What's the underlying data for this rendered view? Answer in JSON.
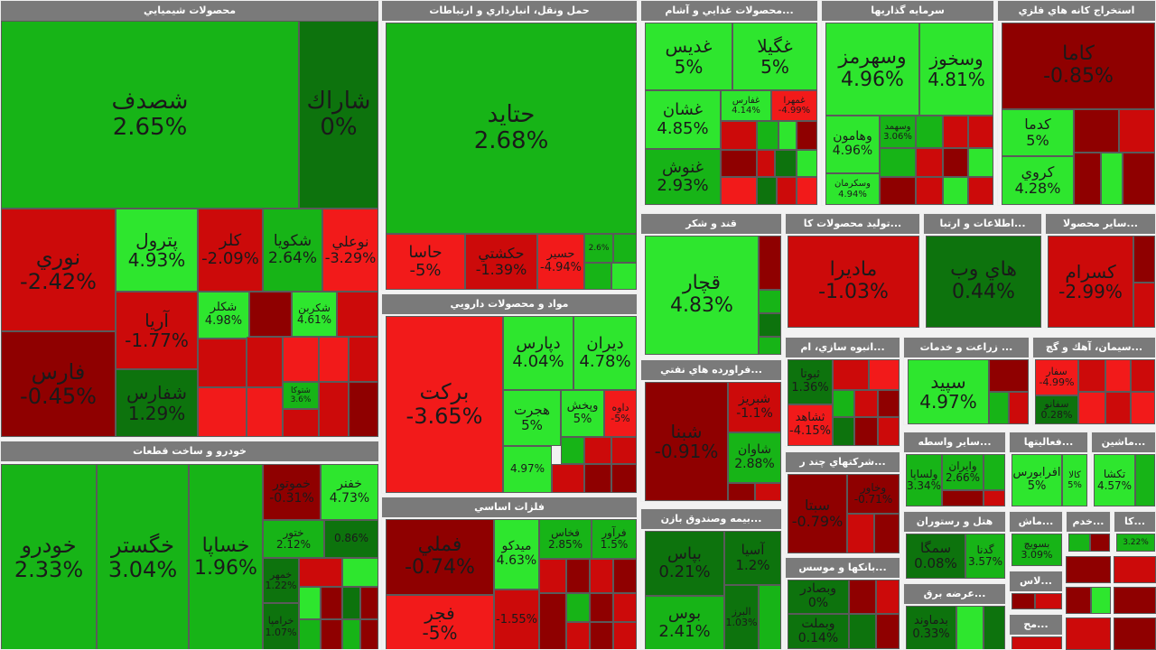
{
  "chart_data": {
    "type": "treemap",
    "value_format": "{v}%",
    "colors": {
      "strong_green": "#2ee62e",
      "green": "#17b417",
      "dark_green": "#0d730d",
      "strong_red": "#f21a1a",
      "red": "#cc0a0a",
      "dark_red": "#8f0000",
      "header": "#7a7a7a"
    },
    "sectors": [
      {
        "name": "محصولات شيميايي",
        "tiles": [
          {
            "symbol": "شصدف",
            "change": 2.65
          },
          {
            "symbol": "شاراك",
            "change": 0
          },
          {
            "symbol": "نوري",
            "change": -2.42
          },
          {
            "symbol": "فارس",
            "change": -0.45
          },
          {
            "symbol": "پترول",
            "change": 4.93
          },
          {
            "symbol": "آريا",
            "change": -1.77
          },
          {
            "symbol": "شفارس",
            "change": 1.29
          },
          {
            "symbol": "كلر",
            "change": -2.09
          },
          {
            "symbol": "شكويا",
            "change": 2.64
          },
          {
            "symbol": "نوعلي",
            "change": -3.29
          },
          {
            "symbol": "شكلر",
            "change": 4.98
          },
          {
            "symbol": "شكربن",
            "change": 4.61
          },
          {
            "symbol": "شتوكا",
            "change": 3.6
          }
        ]
      },
      {
        "name": "حمل ونقل، انبارداري و ارتباطات",
        "tiles": [
          {
            "symbol": "حتايد",
            "change": 2.68
          },
          {
            "symbol": "حاسا",
            "change": -5
          },
          {
            "symbol": "حكشتي",
            "change": -1.39
          },
          {
            "symbol": "حسير",
            "change": -4.94
          },
          {
            "symbol": "",
            "change": 2.6
          }
        ]
      },
      {
        "name": "...محصولات غذايي و آشام",
        "tiles": [
          {
            "symbol": "غديس",
            "change": 5
          },
          {
            "symbol": "غگيلا",
            "change": 5
          },
          {
            "symbol": "غشان",
            "change": 4.85
          },
          {
            "symbol": "غفارس",
            "change": 4.14
          },
          {
            "symbol": "غمهرا",
            "change": -4.99
          },
          {
            "symbol": "غنوش",
            "change": 2.93
          }
        ]
      },
      {
        "name": "سرمايه گذاريها",
        "tiles": [
          {
            "symbol": "وسهرمز",
            "change": 4.96
          },
          {
            "symbol": "وسخوز",
            "change": 4.81
          },
          {
            "symbol": "وهامون",
            "change": 4.96
          },
          {
            "symbol": "وسهمد",
            "change": 3.06
          },
          {
            "symbol": "وسكرمان",
            "change": 4.94
          }
        ]
      },
      {
        "name": "استخراج كانه هاي فلزي",
        "tiles": [
          {
            "symbol": "كاما",
            "change": -0.85
          },
          {
            "symbol": "كدما",
            "change": 5
          },
          {
            "symbol": "كروي",
            "change": 4.28
          }
        ]
      },
      {
        "name": "خودرو و ساخت قطعات",
        "tiles": [
          {
            "symbol": "خودرو",
            "change": 2.33
          },
          {
            "symbol": "خگستر",
            "change": 3.04
          },
          {
            "symbol": "خساپا",
            "change": 1.96
          },
          {
            "symbol": "خموتور",
            "change": -0.31
          },
          {
            "symbol": "خفنر",
            "change": 4.73
          },
          {
            "symbol": "ختور",
            "change": 2.12
          },
          {
            "symbol": "",
            "change": 0.86
          },
          {
            "symbol": "خمهر",
            "change": 1.22
          },
          {
            "symbol": "خرامپا",
            "change": 1.07
          }
        ]
      },
      {
        "name": "مواد و محصولات دارويي",
        "tiles": [
          {
            "symbol": "بركت",
            "change": -3.65
          },
          {
            "symbol": "دپارس",
            "change": 4.04
          },
          {
            "symbol": "ديران",
            "change": 4.78
          },
          {
            "symbol": "هجرت",
            "change": 5
          },
          {
            "symbol": "وپخش",
            "change": 5
          },
          {
            "symbol": "داوه",
            "change": -5
          },
          {
            "symbol": "",
            "change": 4.97
          }
        ]
      },
      {
        "name": "قند و شكر",
        "tiles": [
          {
            "symbol": "قچار",
            "change": 4.83
          }
        ]
      },
      {
        "name": "...توليد محصولات كا",
        "tiles": [
          {
            "symbol": "ماديرا",
            "change": -1.03
          }
        ]
      },
      {
        "name": "...اطلاعات و ارتبا",
        "tiles": [
          {
            "symbol": "هاي وب",
            "change": 0.44
          }
        ]
      },
      {
        "name": "...ساير محصولا",
        "tiles": [
          {
            "symbol": "كسرام",
            "change": -2.99
          }
        ]
      },
      {
        "name": "...فراورده هاي نفتي",
        "tiles": [
          {
            "symbol": "شبنا",
            "change": -0.91
          },
          {
            "symbol": "شبريز",
            "change": -1.1
          },
          {
            "symbol": "شاوان",
            "change": 2.88
          }
        ]
      },
      {
        "name": "...انبوه سازي، ام",
        "tiles": [
          {
            "symbol": "ثبوتا",
            "change": 1.36
          },
          {
            "symbol": "ثشاهد",
            "change": -4.15
          }
        ]
      },
      {
        "name": "... زراعت و خدمات",
        "tiles": [
          {
            "symbol": "سپيد",
            "change": 4.97
          }
        ]
      },
      {
        "name": "...سيمان، آهك و گچ",
        "tiles": [
          {
            "symbol": "سفار",
            "change": -4.99
          },
          {
            "symbol": "سفانو",
            "change": 0.28
          }
        ]
      },
      {
        "name": "...ساير واسطه",
        "tiles": [
          {
            "symbol": "ولساپا",
            "change": 3.34
          },
          {
            "symbol": "وايران",
            "change": 2.66
          }
        ]
      },
      {
        "name": "...فعاليتها",
        "tiles": [
          {
            "symbol": "افرابورس",
            "change": 5
          },
          {
            "symbol": "كالا",
            "change": 5
          }
        ]
      },
      {
        "name": "...ماشين",
        "tiles": [
          {
            "symbol": "تكشا",
            "change": 4.57
          }
        ]
      },
      {
        "name": "...شركتهاي چند ر",
        "tiles": [
          {
            "symbol": "سبتا",
            "change": -0.79
          },
          {
            "symbol": "وخاور",
            "change": -0.71
          }
        ]
      },
      {
        "name": "...بيمه وصندوق بازن",
        "tiles": [
          {
            "symbol": "بپاس",
            "change": 0.21
          },
          {
            "symbol": "آسيا",
            "change": 1.2
          },
          {
            "symbol": "بوس",
            "change": 2.41
          },
          {
            "symbol": "البرز",
            "change": 1.03
          }
        ]
      },
      {
        "name": "...بانكها و موسس",
        "tiles": [
          {
            "symbol": "وبملت",
            "change": 0.14
          },
          {
            "symbol": "وبصادر",
            "change": 0
          }
        ]
      },
      {
        "name": "هتل و رستوران",
        "tiles": [
          {
            "symbol": "سمگا",
            "change": 0.08
          },
          {
            "symbol": "گدنا",
            "change": 3.57
          }
        ]
      },
      {
        "name": "...عرضه برق",
        "tiles": [
          {
            "symbol": "بدماوند",
            "change": 0.33
          }
        ]
      },
      {
        "name": "فلزات اساسي",
        "tiles": [
          {
            "symbol": "فملي",
            "change": -0.74
          },
          {
            "symbol": "فجر",
            "change": -5
          },
          {
            "symbol": "ميدكو",
            "change": 4.63
          },
          {
            "symbol": "فخاس",
            "change": 2.85
          },
          {
            "symbol": "فرآور",
            "change": 1.5
          },
          {
            "symbol": "",
            "change": -1.55
          }
        ]
      },
      {
        "name": "...ماش",
        "tiles": [
          {
            "symbol": "بسويچ",
            "change": 3.09
          }
        ]
      },
      {
        "name": "...خدم",
        "tiles": []
      },
      {
        "name": "...كا",
        "tiles": [
          {
            "symbol": "",
            "change": 3.22
          }
        ]
      },
      {
        "name": "...لاس",
        "tiles": []
      },
      {
        "name": "...مح",
        "tiles": []
      }
    ]
  }
}
